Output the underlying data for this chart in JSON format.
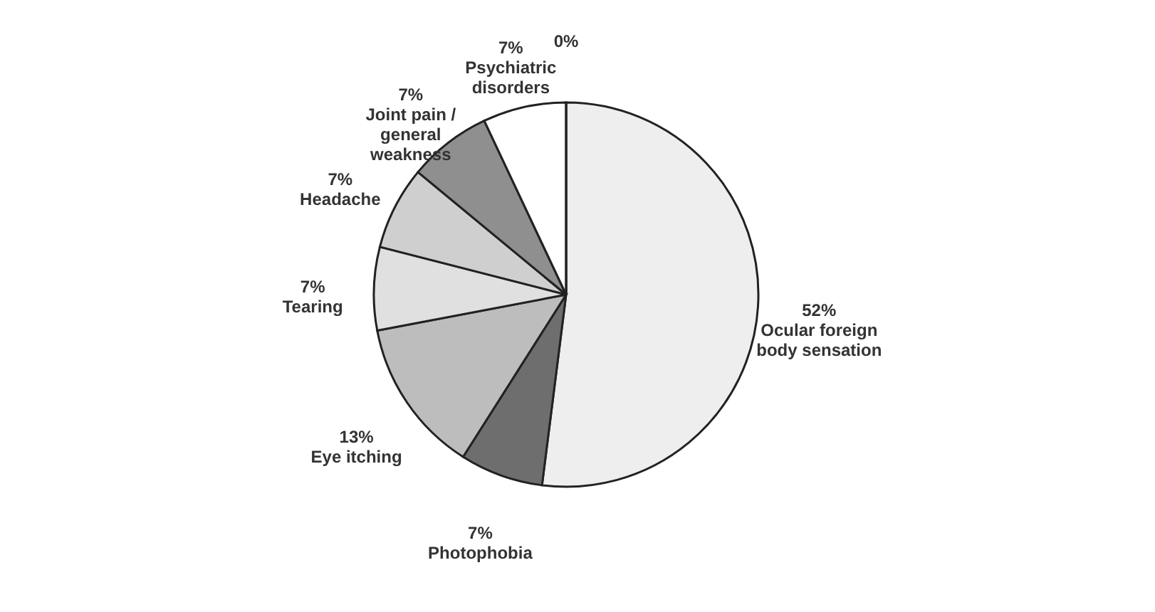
{
  "chart_data": {
    "type": "pie",
    "categories": [
      "Ocular foreign body sensation",
      "Photophobia",
      "Eye itching",
      "Tearing",
      "Headache",
      "Joint pain / general weakness",
      "Psychiatric disorders",
      null
    ],
    "values": [
      52,
      7,
      13,
      7,
      7,
      7,
      7,
      0
    ],
    "value_labels": [
      "52%",
      "7%",
      "13%",
      "7%",
      "7%",
      "7%",
      "7%",
      "0%"
    ],
    "colors": [
      "#eeeeee",
      "#6e6e6e",
      "#bdbdbd",
      "#e0e0e0",
      "#cfcfcf",
      "#8f8f8f",
      "#ffffff",
      "#ffffff"
    ],
    "legend": false
  }
}
